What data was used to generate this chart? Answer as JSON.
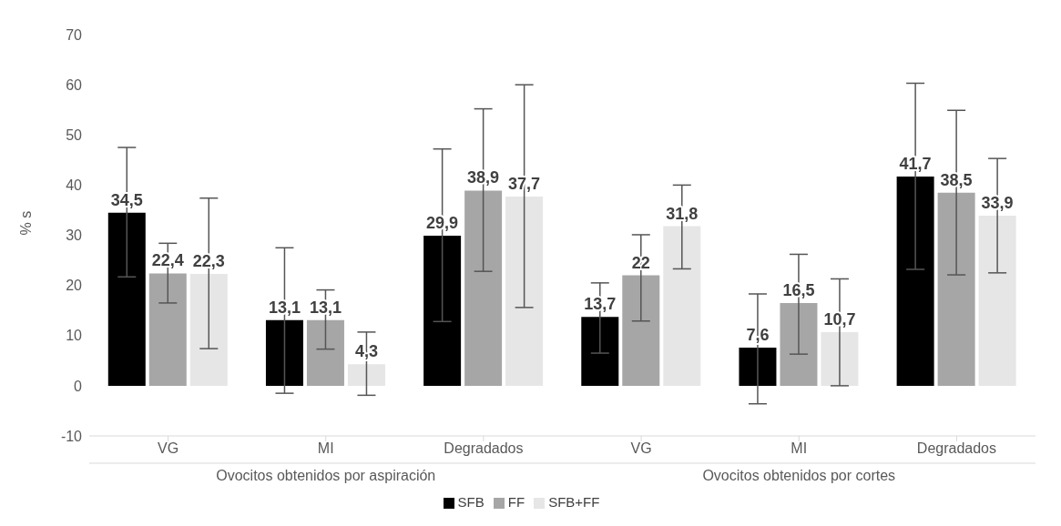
{
  "chart_data": {
    "type": "bar",
    "ylabel": "% s",
    "categories": [
      "VG",
      "MI",
      "Degradados",
      "VG",
      "MI",
      "Degradados"
    ],
    "annotations": [
      "Ovocitos obtenidos por aspiración",
      "Ovocitos obtenidos por cortes"
    ],
    "series": [
      {
        "name": "SFB",
        "color": "#000000",
        "values": [
          34.5,
          13.1,
          29.9,
          13.7,
          7.6,
          41.7
        ],
        "value_labels": [
          "34,5",
          "13,1",
          "29,9",
          "13,7",
          "7,6",
          "41,7"
        ],
        "errors": [
          [
            21.7,
            47.5
          ],
          [
            -1.5,
            27.5
          ],
          [
            12.8,
            47.2
          ],
          [
            6.5,
            20.5
          ],
          [
            -3.6,
            18.3
          ],
          [
            23.2,
            60.3
          ]
        ]
      },
      {
        "name": "FF",
        "color": "#a6a6a6",
        "values": [
          22.4,
          13.1,
          38.9,
          22,
          16.5,
          38.5
        ],
        "value_labels": [
          "22,4",
          "13,1",
          "38,9",
          "22",
          "16,5",
          "38,5"
        ],
        "errors": [
          [
            16.5,
            28.4
          ],
          [
            7.3,
            19.1
          ],
          [
            22.8,
            55.2
          ],
          [
            12.9,
            30.1
          ],
          [
            6.3,
            26.2
          ],
          [
            22.1,
            54.9
          ]
        ]
      },
      {
        "name": "SFB+FF",
        "color": "#e7e6e6",
        "values": [
          22.3,
          4.3,
          37.7,
          31.8,
          10.7,
          33.9
        ],
        "value_labels": [
          "22,3",
          "4,3",
          "37,7",
          "31,8",
          "10,7",
          "33,9"
        ],
        "errors": [
          [
            7.4,
            37.4
          ],
          [
            -1.9,
            10.7
          ],
          [
            15.6,
            60
          ],
          [
            23.3,
            40
          ],
          [
            0,
            21.3
          ],
          [
            22.5,
            45.3
          ]
        ]
      }
    ],
    "ylim": [
      -10,
      70
    ],
    "yticks": [
      -10,
      0,
      10,
      20,
      30,
      40,
      50,
      60,
      70
    ],
    "legend": "bottom"
  }
}
